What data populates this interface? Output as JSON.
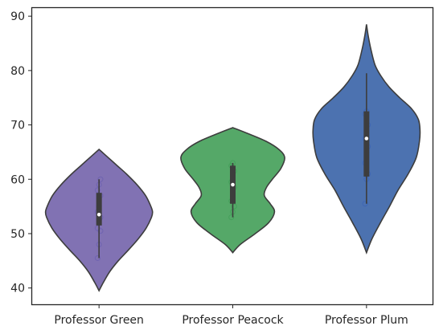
{
  "chart_data": {
    "type": "violin",
    "title": "",
    "xlabel": "",
    "ylabel": "",
    "ylim": [
      37,
      91.5
    ],
    "yticks": [
      40,
      50,
      60,
      70,
      80,
      90
    ],
    "grid": false,
    "legend": "none",
    "categories": [
      "Professor Green",
      "Professor Peacock",
      "Professor Plum"
    ],
    "series": [
      {
        "color": "#8172b3",
        "points_color": "#6a5fb0",
        "y_min": 39.5,
        "y_max": 65.5,
        "density_half_width": [
          [
            39.5,
            0.0
          ],
          [
            41,
            0.08
          ],
          [
            43,
            0.2
          ],
          [
            45,
            0.36
          ],
          [
            47,
            0.55
          ],
          [
            49,
            0.73
          ],
          [
            51,
            0.88
          ],
          [
            53,
            0.98
          ],
          [
            54,
            1.0
          ],
          [
            55,
            0.97
          ],
          [
            57,
            0.87
          ],
          [
            59,
            0.71
          ],
          [
            61,
            0.51
          ],
          [
            62.5,
            0.34
          ],
          [
            64,
            0.17
          ],
          [
            65.5,
            0.0
          ]
        ],
        "whisker": [
          45.5,
          60
        ],
        "iqr": [
          51.5,
          57.5
        ],
        "median": 53.5,
        "points": [
          45.5,
          48,
          50.5,
          51,
          52.5,
          53,
          54,
          55,
          57,
          58,
          59,
          60
        ]
      },
      {
        "color": "#55a868",
        "points_color": "#3f9e56",
        "y_min": 46.5,
        "y_max": 69.5,
        "density_half_width": [
          [
            46.5,
            0.0
          ],
          [
            48,
            0.14
          ],
          [
            50,
            0.42
          ],
          [
            52,
            0.67
          ],
          [
            54,
            0.78
          ],
          [
            55.5,
            0.7
          ],
          [
            57,
            0.59
          ],
          [
            58.5,
            0.63
          ],
          [
            60,
            0.74
          ],
          [
            62,
            0.9
          ],
          [
            64,
            0.97
          ],
          [
            65.5,
            0.86
          ],
          [
            67,
            0.62
          ],
          [
            68.5,
            0.26
          ],
          [
            69.5,
            0.0
          ]
        ],
        "whisker": [
          53,
          63
        ],
        "iqr": [
          55.5,
          62.5
        ],
        "median": 59,
        "points": [
          53,
          54,
          55,
          56,
          57.5,
          58.5,
          59.5,
          60.5,
          61.5,
          62.5,
          63
        ]
      },
      {
        "color": "#4c72b0",
        "points_color": "#3b63b5",
        "y_min": 46.5,
        "y_max": 88.5,
        "density_half_width": [
          [
            46.5,
            0.0
          ],
          [
            49,
            0.1
          ],
          [
            52,
            0.26
          ],
          [
            55,
            0.43
          ],
          [
            58,
            0.59
          ],
          [
            61,
            0.78
          ],
          [
            64,
            0.93
          ],
          [
            67,
            0.99
          ],
          [
            69,
            1.0
          ],
          [
            71,
            0.97
          ],
          [
            73,
            0.84
          ],
          [
            75,
            0.62
          ],
          [
            77,
            0.42
          ],
          [
            79,
            0.27
          ],
          [
            81,
            0.16
          ],
          [
            84,
            0.08
          ],
          [
            86.5,
            0.03
          ],
          [
            88.5,
            0.0
          ]
        ],
        "whisker": [
          55.5,
          79.5
        ],
        "iqr": [
          60.5,
          72.5
        ],
        "median": 67.5,
        "points": [
          55.5,
          60,
          61,
          63,
          65,
          66,
          67.5,
          69,
          70,
          72,
          72.5
        ]
      }
    ]
  }
}
